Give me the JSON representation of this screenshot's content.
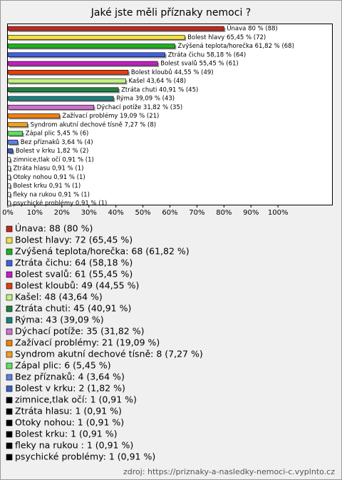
{
  "chart_data": {
    "type": "bar",
    "orientation": "horizontal",
    "title": "Jaké jste měli příznaky nemoci ?",
    "categories": [
      "Únava",
      "Bolest hlavy",
      "Zvýšená teplota/horečka",
      "Ztráta čichu",
      "Bolest svalů",
      "Bolest kloubů",
      "Kašel",
      "Ztráta chuti",
      "Rýma",
      "Dýchací potíže",
      "Zažívací problémy",
      "Syndrom akutní dechové tísně",
      "Zápal plic",
      "Bez příznaků",
      "Bolest v krku",
      "zimnice,tlak očí",
      "Ztráta hlasu",
      "Otoky nohou",
      "Bolest krku",
      "fleky na rukou ",
      "psychické problémy"
    ],
    "values": [
      80,
      65.45,
      61.82,
      58.18,
      55.45,
      44.55,
      43.64,
      40.91,
      39.09,
      31.82,
      19.09,
      7.27,
      5.45,
      3.64,
      1.82,
      0.91,
      0.91,
      0.91,
      0.91,
      0.91,
      0.91
    ],
    "value_labels": [
      "Únava 80 % (88)",
      "Bolest hlavy 65,45 % (72)",
      "Zvýšená teplota/horečka 61,82 % (68)",
      "Ztráta čichu 58,18 % (64)",
      "Bolest svalů 55,45 % (61)",
      "Bolest kloubů 44,55 % (49)",
      "Kašel 43,64 % (48)",
      "Ztráta chuti 40,91 % (45)",
      "Rýma 39,09 % (43)",
      "Dýchací potíže 31,82 % (35)",
      "Zažívací problémy 19,09 % (21)",
      "Syndrom akutní dechové tísně 7,27 % (8)",
      "Zápal plic 5,45 % (6)",
      "Bez příznaků 3,64 % (4)",
      "Bolest v krku 1,82 % (2)",
      "zimnice,tlak očí 0,91 % (1)",
      "Ztráta hlasu 0,91 % (1)",
      "Otoky nohou 0,91 % (1)",
      "Bolest krku 0,91 % (1)",
      "fleky na rukou  0,91 % (1)",
      "psychické problémy 0,91 % (1)"
    ],
    "legend_labels": [
      "Únava: 88 (80 %)",
      "Bolest hlavy: 72 (65,45 %)",
      "Zvýšená teplota/horečka: 68 (61,82 %)",
      "Ztráta čichu: 64 (58,18 %)",
      "Bolest svalů: 61 (55,45 %)",
      "Bolest kloubů: 49 (44,55 %)",
      "Kašel: 48 (43,64 %)",
      "Ztráta chuti: 45 (40,91 %)",
      "Rýma: 43 (39,09 %)",
      "Dýchací potíže: 35 (31,82 %)",
      "Zažívací problémy: 21 (19,09 %)",
      "Syndrom akutní dechové tísně: 8 (7,27 %)",
      "Zápal plic: 6 (5,45 %)",
      "Bez příznaků: 4 (3,64 %)",
      "Bolest v krku: 2 (1,82 %)",
      "zimnice,tlak očí: 1 (0,91 %)",
      "Ztráta hlasu: 1 (0,91 %)",
      "Otoky nohou: 1 (0,91 %)",
      "Bolest krku: 1 (0,91 %)",
      "fleky na rukou : 1 (0,91 %)",
      "psychické problémy: 1 (0,91 %)"
    ],
    "colors": [
      "#c0281e",
      "#f0e040",
      "#20b020",
      "#4060e0",
      "#c020c0",
      "#e04010",
      "#c0f080",
      "#208040",
      "#208080",
      "#d070d0",
      "#f08010",
      "#f0a020",
      "#60e060",
      "#6080e0",
      "#4060c0",
      "#000000",
      "#000000",
      "#000000",
      "#000000",
      "#000000",
      "#000000"
    ],
    "xlim": [
      0,
      120
    ],
    "xticks": [
      {
        "value": 0,
        "label": "0%"
      },
      {
        "value": 10,
        "label": "10%"
      },
      {
        "value": 20,
        "label": "20%"
      },
      {
        "value": 30,
        "label": "30%"
      },
      {
        "value": 40,
        "label": "40%"
      },
      {
        "value": 50,
        "label": "50%"
      },
      {
        "value": 60,
        "label": "60%"
      },
      {
        "value": 70,
        "label": "70%"
      },
      {
        "value": 80,
        "label": "80%"
      },
      {
        "value": 90,
        "label": "90%"
      },
      {
        "value": 100,
        "label": "100%"
      }
    ],
    "source": "zdroj: https://priznaky-a-nasledky-nemoci-c.vyplnto.cz"
  }
}
